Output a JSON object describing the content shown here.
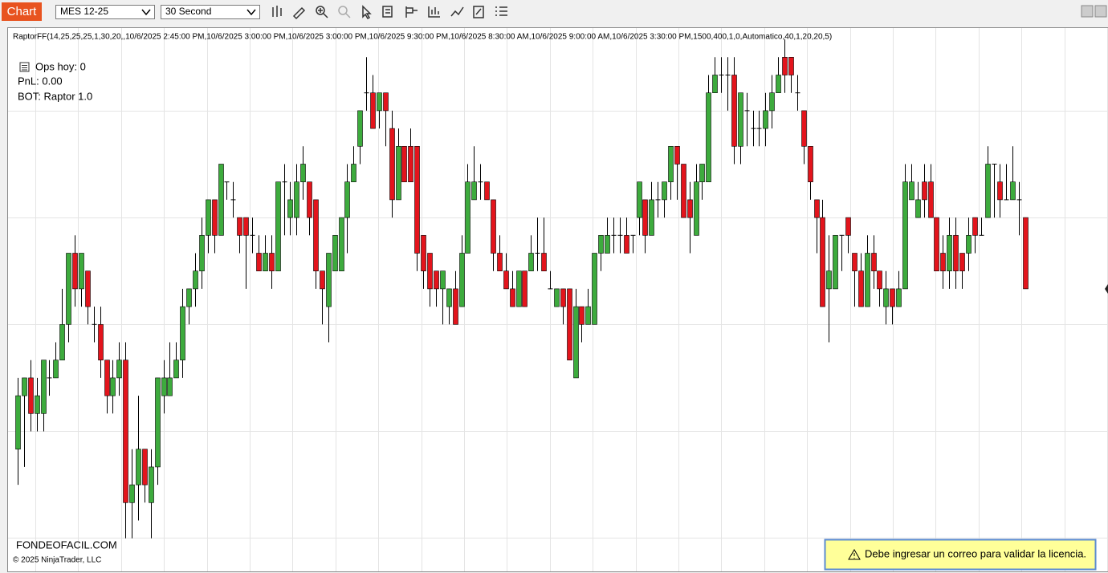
{
  "toolbar": {
    "tab": "Chart",
    "instrument": "MES 12-25",
    "interval": "30 Second"
  },
  "indicator_label": "RaptorFF(14,25,25,25,1,30,20,,10/6/2025 2:45:00 PM,10/6/2025 3:00:00 PM,10/6/2025 3:00:00 PM,10/6/2025 9:30:00 PM,10/6/2025 8:30:00 AM,10/6/2025 9:00:00 AM,10/6/2025 3:30:00 PM,1500,400,1,0,Automatico,40,1,20,20,5)",
  "overlay": {
    "ops": "Ops hoy: 0",
    "pnl": "PnL: 0.00",
    "bot": "BOT: Raptor 1.0"
  },
  "footer": {
    "brand": "FONDEOFACIL.COM",
    "copyright": "© 2025 NinjaTrader, LLC"
  },
  "warning": "Debe ingresar un correo para validar la licencia.",
  "chart_data": {
    "type": "candlestick",
    "up_color": "#3dab3d",
    "down_color": "#e3141c",
    "ylim": [
      -1.5,
      28.5
    ],
    "open": [
      5,
      8,
      9,
      7,
      7,
      9,
      9,
      10,
      12,
      16,
      14,
      15,
      12,
      12,
      10,
      8,
      9,
      10,
      2,
      3,
      5,
      2,
      4,
      8,
      8,
      9,
      10,
      13,
      14,
      15,
      17,
      19,
      17,
      20,
      19,
      18,
      18,
      17,
      16,
      15,
      16,
      15,
      20,
      18,
      18,
      20,
      20,
      19,
      15,
      13,
      15,
      15,
      18,
      20,
      22,
      25,
      25,
      24,
      25,
      23,
      19,
      22,
      22,
      22,
      17,
      16,
      15,
      14,
      13,
      14,
      13,
      16,
      19,
      20,
      20,
      19,
      16,
      15,
      14,
      13,
      15,
      15,
      16,
      16,
      14,
      13,
      14,
      14,
      9,
      13,
      12,
      12,
      16,
      16,
      17,
      17,
      17,
      17,
      18,
      19,
      17,
      19,
      19,
      20,
      22,
      21,
      19,
      17,
      20,
      20,
      25,
      26,
      26,
      26,
      22,
      24,
      23,
      23,
      23,
      24,
      25,
      27,
      27,
      25,
      24,
      22,
      19,
      18,
      14,
      14,
      17,
      18,
      16,
      15,
      13,
      16,
      15,
      13,
      14,
      13,
      14,
      19,
      18,
      20,
      20,
      18,
      16,
      15,
      17,
      16,
      16,
      18,
      17,
      18,
      21,
      20,
      19,
      19,
      19,
      18
    ],
    "high": [
      9,
      9,
      10,
      9,
      10,
      10,
      11,
      14,
      16,
      17,
      16,
      15,
      13,
      13,
      10,
      10,
      11,
      11,
      5,
      8,
      5,
      5,
      9,
      10,
      11,
      11,
      14,
      14,
      16,
      18,
      19,
      19,
      21,
      20,
      20,
      18,
      18,
      18,
      17,
      17,
      17,
      20,
      21,
      20,
      21,
      22,
      20,
      19,
      15,
      16,
      17,
      18,
      21,
      22,
      24,
      27,
      26,
      25,
      25,
      24,
      23,
      22,
      23,
      22,
      17,
      16,
      15,
      15,
      14,
      15,
      17,
      21,
      22,
      21,
      20,
      19,
      17,
      16,
      15,
      15,
      15,
      17,
      18,
      18,
      15,
      14,
      14,
      14,
      14,
      13,
      14,
      16,
      17,
      18,
      18,
      18,
      18,
      17,
      20,
      19,
      20,
      20,
      20,
      22,
      22,
      21,
      20,
      21,
      21,
      26,
      27,
      27,
      27,
      27,
      25,
      25,
      24,
      24,
      25,
      26,
      27,
      28,
      27,
      26,
      24,
      22,
      19,
      19,
      17,
      17,
      17,
      18,
      16,
      16,
      17,
      17,
      15,
      15,
      14,
      15,
      21,
      21,
      20,
      21,
      21,
      18,
      17,
      18,
      18,
      16,
      18,
      18,
      18,
      22,
      21,
      21,
      21,
      22,
      20,
      18
    ],
    "low": [
      3,
      4,
      6,
      6,
      6,
      8,
      9,
      10,
      11,
      13,
      13,
      12,
      11,
      9,
      7,
      7,
      8,
      0,
      0,
      1,
      2,
      0,
      3,
      7,
      8,
      9,
      9,
      12,
      13,
      14,
      16,
      16,
      17,
      19,
      18,
      16,
      14,
      16,
      15,
      15,
      14,
      15,
      17,
      17,
      17,
      19,
      17,
      14,
      12,
      11,
      15,
      15,
      16,
      20,
      21,
      24,
      23,
      23,
      22,
      18,
      19,
      20,
      20,
      15,
      14,
      13,
      13,
      12,
      12,
      12,
      13,
      16,
      19,
      19,
      19,
      15,
      15,
      14,
      13,
      13,
      13,
      15,
      15,
      15,
      14,
      13,
      12,
      10,
      9,
      11,
      12,
      12,
      15,
      16,
      16,
      16,
      16,
      16,
      17,
      16,
      17,
      18,
      18,
      19,
      19,
      18,
      16,
      17,
      19,
      20,
      25,
      25,
      24,
      21,
      21,
      22,
      22,
      22,
      22,
      23,
      25,
      25,
      25,
      24,
      21,
      19,
      16,
      13,
      11,
      14,
      15,
      16,
      13,
      13,
      13,
      14,
      13,
      12,
      12,
      13,
      14,
      19,
      18,
      18,
      18,
      15,
      14,
      14,
      14,
      14,
      15,
      16,
      17,
      18,
      18,
      18,
      19,
      19,
      17,
      14
    ],
    "close": [
      8,
      9,
      7,
      8,
      10,
      9,
      10,
      12,
      16,
      14,
      16,
      13,
      12,
      10,
      8,
      9,
      10,
      2,
      3,
      5,
      3,
      4,
      9,
      9,
      9,
      10,
      13,
      14,
      15,
      17,
      19,
      17,
      21,
      20,
      19,
      17,
      17,
      17,
      15,
      16,
      15,
      20,
      20,
      19,
      20,
      21,
      18,
      15,
      14,
      16,
      17,
      18,
      20,
      21,
      24,
      25,
      23,
      25,
      24,
      19,
      22,
      20,
      20,
      16,
      15,
      14,
      14,
      15,
      14,
      12,
      16,
      20,
      20,
      20,
      19,
      16,
      15,
      14,
      13,
      15,
      13,
      16,
      16,
      15,
      14,
      14,
      13,
      10,
      13,
      12,
      13,
      16,
      17,
      17,
      17,
      17,
      16,
      17,
      20,
      17,
      19,
      19,
      20,
      22,
      21,
      18,
      18,
      20,
      21,
      25,
      26,
      26,
      26,
      22,
      25,
      24,
      23,
      23,
      24,
      25,
      26,
      26,
      26,
      25,
      22,
      20,
      18,
      13,
      15,
      17,
      17,
      17,
      15,
      13,
      16,
      15,
      14,
      14,
      13,
      14,
      20,
      20,
      19,
      19,
      18,
      15,
      15,
      17,
      15,
      15,
      17,
      17,
      17,
      21,
      21,
      19,
      19,
      20,
      19,
      14
    ]
  }
}
